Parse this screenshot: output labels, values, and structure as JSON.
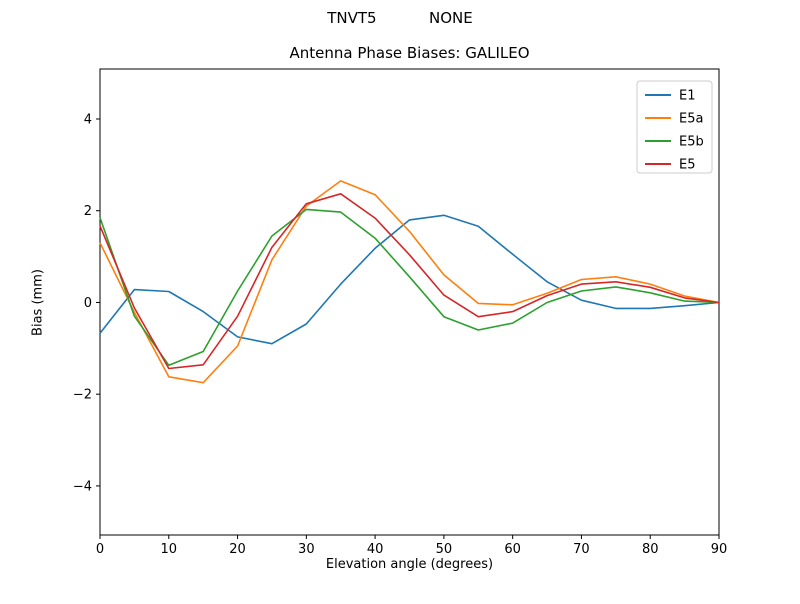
{
  "figure": {
    "suptitle": "TNVT5           NONE",
    "title": "Antenna Phase Biases: GALILEO",
    "xlabel": "Elevation angle (degrees)",
    "ylabel": "Bias (mm)"
  },
  "chart_data": {
    "type": "line",
    "suptitle": "TNVT5           NONE",
    "title": "Antenna Phase Biases: GALILEO",
    "xlabel": "Elevation angle (degrees)",
    "ylabel": "Bias (mm)",
    "xlim": [
      0,
      90
    ],
    "ylim": [
      -5.07,
      5.09
    ],
    "xticks": [
      0,
      10,
      20,
      30,
      40,
      50,
      60,
      70,
      80,
      90
    ],
    "yticks": [
      -4,
      -2,
      0,
      2,
      4
    ],
    "grid": false,
    "legend_position": "upper right",
    "axis_color": "#000000",
    "background_color": "#ffffff",
    "legend_border_color": "#cccccc",
    "x": [
      0,
      5,
      10,
      15,
      20,
      25,
      30,
      35,
      40,
      45,
      50,
      55,
      60,
      65,
      70,
      75,
      80,
      85,
      90
    ],
    "series": [
      {
        "name": "E1",
        "color": "#1f77b4",
        "values": [
          -0.67,
          0.28,
          0.24,
          -0.2,
          -0.75,
          -0.9,
          -0.47,
          0.4,
          1.18,
          1.8,
          1.9,
          1.66,
          1.05,
          0.45,
          0.05,
          -0.13,
          -0.13,
          -0.07,
          0.0
        ]
      },
      {
        "name": "E5a",
        "color": "#ff7f0e",
        "values": [
          1.3,
          -0.22,
          -1.62,
          -1.75,
          -0.95,
          0.93,
          2.1,
          2.65,
          2.35,
          1.55,
          0.6,
          -0.02,
          -0.05,
          0.2,
          0.5,
          0.56,
          0.4,
          0.14,
          0.0
        ]
      },
      {
        "name": "E5b",
        "color": "#2ca02c",
        "values": [
          1.85,
          -0.3,
          -1.37,
          -1.07,
          0.25,
          1.45,
          2.03,
          1.97,
          1.4,
          0.56,
          -0.31,
          -0.6,
          -0.45,
          0.0,
          0.25,
          0.34,
          0.21,
          0.03,
          0.0
        ]
      },
      {
        "name": "E5",
        "color": "#d62728",
        "values": [
          1.67,
          -0.12,
          -1.44,
          -1.36,
          -0.3,
          1.2,
          2.15,
          2.37,
          1.84,
          1.04,
          0.16,
          -0.31,
          -0.2,
          0.15,
          0.4,
          0.45,
          0.33,
          0.1,
          0.0
        ]
      }
    ]
  }
}
